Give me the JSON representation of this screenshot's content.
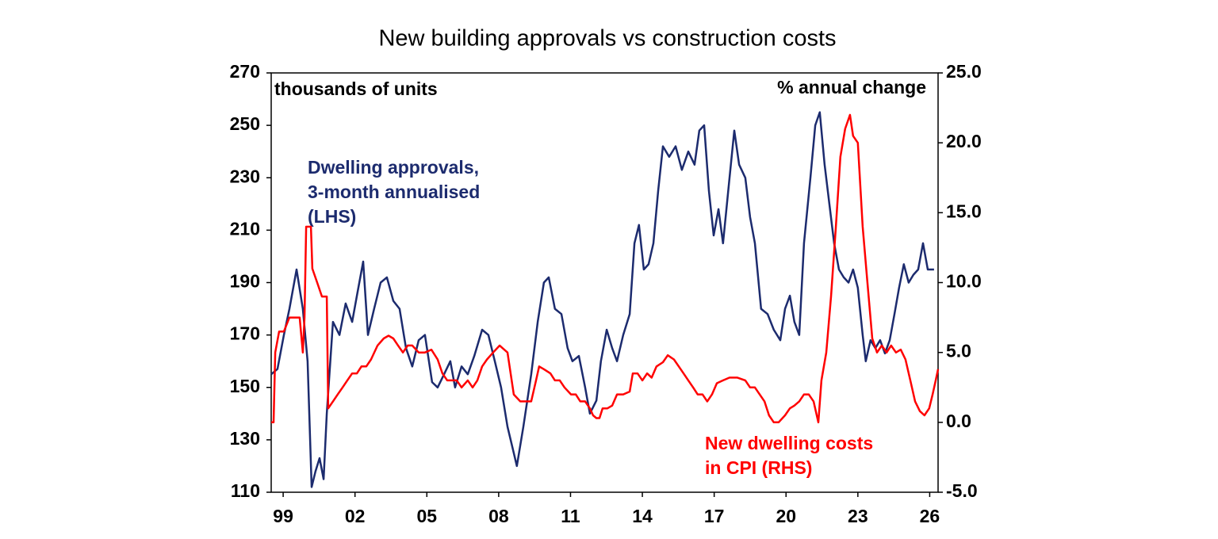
{
  "chart_data": {
    "type": "line",
    "title": "New building approvals vs construction costs",
    "ylabel": "thousands of units",
    "y2label": "% annual change",
    "xlim": [
      1998.5,
      2026.35
    ],
    "xticks": [
      {
        "value": 1999,
        "label": "99"
      },
      {
        "value": 2002,
        "label": "02"
      },
      {
        "value": 2005,
        "label": "05"
      },
      {
        "value": 2008,
        "label": "08"
      },
      {
        "value": 2011,
        "label": "11"
      },
      {
        "value": 2014,
        "label": "14"
      },
      {
        "value": 2017,
        "label": "17"
      },
      {
        "value": 2020,
        "label": "20"
      },
      {
        "value": 2023,
        "label": "23"
      },
      {
        "value": 2026,
        "label": "26"
      }
    ],
    "ylim": [
      110,
      270
    ],
    "yticks": [
      110,
      130,
      150,
      170,
      190,
      210,
      230,
      250,
      270
    ],
    "y2lim": [
      -5,
      25
    ],
    "y2ticks": [
      {
        "value": -5,
        "label": "-5.0"
      },
      {
        "value": 0,
        "label": "0.0"
      },
      {
        "value": 5,
        "label": "5.0"
      },
      {
        "value": 10,
        "label": "10.0"
      },
      {
        "value": 15,
        "label": "15.0"
      },
      {
        "value": 20,
        "label": "20.0"
      },
      {
        "value": 25,
        "label": "25.0"
      }
    ],
    "grid": false,
    "series": [
      {
        "name": [
          "Dwelling approvals,",
          "3-month annualised",
          "(LHS)"
        ],
        "color": "#1c2b6e",
        "axis": "y",
        "x": [
          1998.5,
          1998.76,
          1999.03,
          1999.26,
          1999.56,
          1999.82,
          2000.02,
          2000.19,
          2000.35,
          2000.52,
          2000.69,
          2000.82,
          2001.08,
          2001.35,
          2001.61,
          2001.88,
          2002.08,
          2002.34,
          2002.54,
          2002.8,
          2003.07,
          2003.33,
          2003.6,
          2003.86,
          2004.13,
          2004.39,
          2004.66,
          2004.92,
          2005.22,
          2005.45,
          2005.72,
          2005.98,
          2006.18,
          2006.45,
          2006.71,
          2006.98,
          2007.31,
          2007.57,
          2007.84,
          2008.1,
          2008.37,
          2008.63,
          2008.76,
          2009.03,
          2009.36,
          2009.63,
          2009.89,
          2010.09,
          2010.35,
          2010.62,
          2010.88,
          2011.08,
          2011.35,
          2011.61,
          2011.81,
          2012.08,
          2012.27,
          2012.51,
          2012.74,
          2012.94,
          2013.2,
          2013.47,
          2013.67,
          2013.86,
          2014.06,
          2014.26,
          2014.46,
          2014.66,
          2014.86,
          2015.12,
          2015.39,
          2015.65,
          2015.92,
          2016.18,
          2016.38,
          2016.58,
          2016.78,
          2016.98,
          2017.18,
          2017.37,
          2017.64,
          2017.84,
          2018.04,
          2018.3,
          2018.5,
          2018.7,
          2018.96,
          2019.23,
          2019.49,
          2019.76,
          2019.96,
          2020.16,
          2020.35,
          2020.55,
          2020.75,
          2021.02,
          2021.22,
          2021.41,
          2021.61,
          2021.81,
          2022.01,
          2022.21,
          2022.41,
          2022.61,
          2022.8,
          2023.0,
          2023.2,
          2023.33,
          2023.53,
          2023.73,
          2023.93,
          2024.13,
          2024.33,
          2024.53,
          2024.72,
          2024.92,
          2025.12,
          2025.32,
          2025.52,
          2025.72,
          2025.92,
          2026.18
        ],
        "values": [
          155,
          157,
          170,
          180,
          195,
          180,
          160,
          112,
          118,
          123,
          115,
          140,
          175,
          170,
          182,
          175,
          185,
          198,
          170,
          180,
          190,
          192,
          183,
          180,
          165,
          158,
          168,
          170,
          152,
          150,
          155,
          160,
          150,
          158,
          155,
          162,
          172,
          170,
          160,
          150,
          135,
          125,
          120,
          135,
          155,
          175,
          190,
          192,
          180,
          178,
          165,
          160,
          162,
          150,
          140,
          145,
          160,
          172,
          165,
          160,
          170,
          178,
          205,
          212,
          195,
          197,
          205,
          225,
          242,
          238,
          242,
          233,
          240,
          235,
          248,
          250,
          225,
          208,
          218,
          205,
          230,
          248,
          235,
          230,
          215,
          205,
          180,
          178,
          172,
          168,
          180,
          185,
          175,
          170,
          205,
          230,
          250,
          255,
          235,
          220,
          205,
          195,
          192,
          190,
          195,
          188,
          170,
          160,
          168,
          165,
          168,
          163,
          168,
          178,
          188,
          197,
          190,
          193,
          195,
          205,
          195,
          195
        ]
      },
      {
        "name": [
          "New dwelling costs",
          "in CPI (RHS)"
        ],
        "color": "#ff0000",
        "axis": "y2",
        "x": [
          1998.5,
          1998.6,
          1998.67,
          1998.83,
          1999.03,
          1999.26,
          1999.49,
          1999.69,
          1999.82,
          1999.89,
          1999.96,
          2000.16,
          2000.22,
          2000.42,
          2000.62,
          2000.82,
          2000.88,
          2001.08,
          2001.28,
          2001.48,
          2001.68,
          2001.88,
          2002.08,
          2002.27,
          2002.47,
          2002.67,
          2002.94,
          2003.2,
          2003.4,
          2003.6,
          2003.8,
          2004.0,
          2004.2,
          2004.39,
          2004.66,
          2004.92,
          2005.19,
          2005.45,
          2005.65,
          2005.85,
          2006.05,
          2006.25,
          2006.45,
          2006.71,
          2006.91,
          2007.11,
          2007.31,
          2007.51,
          2007.77,
          2008.04,
          2008.37,
          2008.63,
          2008.9,
          2009.1,
          2009.36,
          2009.56,
          2009.69,
          2009.89,
          2010.16,
          2010.35,
          2010.55,
          2010.75,
          2011.02,
          2011.22,
          2011.41,
          2011.61,
          2011.81,
          2011.94,
          2012.08,
          2012.21,
          2012.34,
          2012.54,
          2012.74,
          2012.94,
          2013.2,
          2013.47,
          2013.6,
          2013.8,
          2014.0,
          2014.2,
          2014.39,
          2014.59,
          2014.86,
          2015.06,
          2015.32,
          2015.52,
          2015.72,
          2015.92,
          2016.12,
          2016.31,
          2016.51,
          2016.71,
          2016.91,
          2017.11,
          2017.37,
          2017.64,
          2017.97,
          2018.3,
          2018.5,
          2018.7,
          2018.9,
          2019.1,
          2019.29,
          2019.49,
          2019.69,
          2019.96,
          2020.16,
          2020.35,
          2020.55,
          2020.75,
          2020.95,
          2021.15,
          2021.35,
          2021.48,
          2021.68,
          2021.88,
          2022.08,
          2022.27,
          2022.47,
          2022.67,
          2022.8,
          2023.0,
          2023.2,
          2023.4,
          2023.6,
          2023.8,
          2024.0,
          2024.2,
          2024.39,
          2024.59,
          2024.79,
          2024.99,
          2025.19,
          2025.39,
          2025.59,
          2025.78,
          2025.98,
          2026.12,
          2026.25,
          2026.35
        ],
        "values": [
          0,
          0,
          5,
          6.5,
          6.5,
          7.5,
          7.5,
          7.5,
          5,
          7.5,
          14,
          14,
          11,
          10,
          9,
          9,
          1,
          1.5,
          2,
          2.5,
          3,
          3.5,
          3.5,
          4,
          4,
          4.5,
          5.5,
          6,
          6.2,
          6,
          5.5,
          5,
          5.5,
          5.5,
          5,
          5,
          5.2,
          4.5,
          3.5,
          3,
          3,
          3,
          2.5,
          3,
          2.5,
          3,
          4,
          4.5,
          5,
          5.5,
          5,
          2,
          1.5,
          1.5,
          1.5,
          3,
          4,
          3.8,
          3.5,
          3,
          3,
          2.5,
          2,
          2,
          1.5,
          1.5,
          1,
          0.5,
          0.3,
          0.3,
          1,
          1,
          1.2,
          2,
          2,
          2.2,
          3.5,
          3.5,
          3,
          3.5,
          3.2,
          4,
          4.3,
          4.8,
          4.5,
          4,
          3.5,
          3,
          2.5,
          2,
          2,
          1.5,
          2,
          2.8,
          3,
          3.2,
          3.2,
          3,
          2.5,
          2.5,
          2,
          1.5,
          0.5,
          0,
          0,
          0.5,
          1,
          1.2,
          1.5,
          2,
          2,
          1.5,
          0,
          3,
          5,
          9,
          14,
          19,
          21,
          22,
          20.5,
          20,
          14,
          10,
          6,
          5,
          5.5,
          5,
          5.5,
          5,
          5.2,
          4.5,
          3,
          1.5,
          0.8,
          0.5,
          1,
          2,
          3,
          3.8
        ]
      }
    ]
  }
}
